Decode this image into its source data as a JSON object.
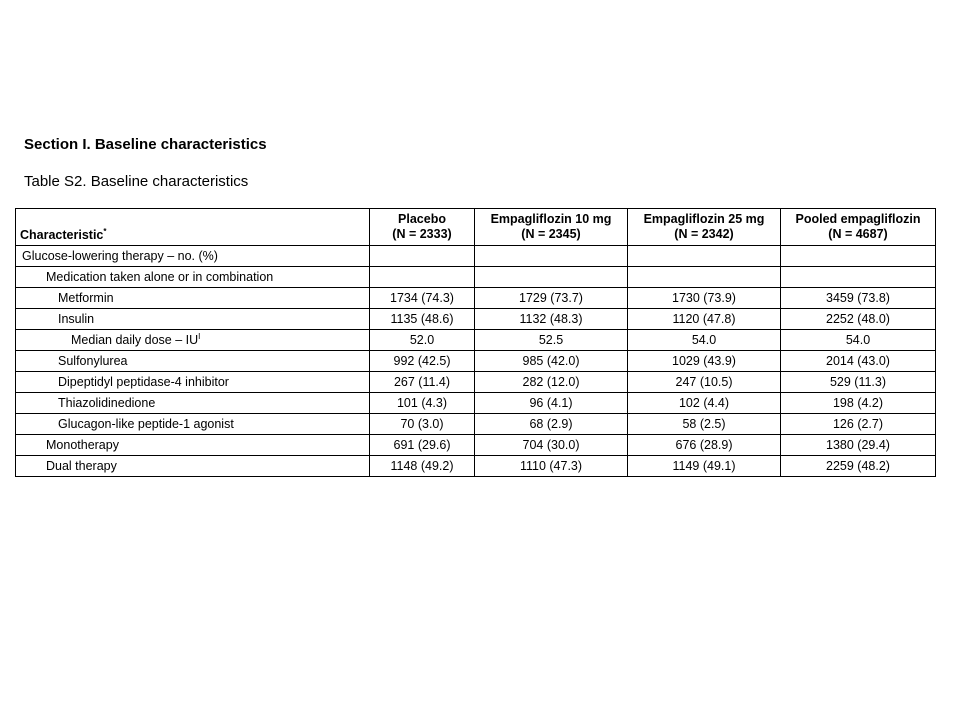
{
  "header": {
    "section": "Section I. Baseline characteristics",
    "caption": "Table S2. Baseline characteristics"
  },
  "table": {
    "first_header": {
      "label": "Characteristic",
      "sup": "*"
    },
    "columns": [
      {
        "label": "Placebo",
        "n": "(N = 2333)"
      },
      {
        "label": "Empagliflozin 10 mg",
        "n": "(N = 2345)"
      },
      {
        "label": "Empagliflozin 25 mg",
        "n": "(N = 2342)"
      },
      {
        "label": "Pooled empagliflozin",
        "n": "(N = 4687)"
      }
    ],
    "rows": [
      {
        "label": "Glucose-lowering therapy – no. (%)",
        "values": [
          null,
          null,
          null,
          null
        ]
      },
      {
        "label": "Medication taken alone or in combination",
        "values": [
          null,
          null,
          null,
          null
        ]
      },
      {
        "label": "Metformin",
        "values": [
          "1734 (74.3)",
          "1729 (73.7)",
          "1730 (73.9)",
          "3459 (73.8)"
        ]
      },
      {
        "label": "Insulin",
        "values": [
          "1135 (48.6)",
          "1132 (48.3)",
          "1120 (47.8)",
          "2252 (48.0)"
        ]
      },
      {
        "label": "Median daily dose – IU",
        "sup": "I",
        "values": [
          "52.0",
          "52.5",
          "54.0",
          "54.0"
        ]
      },
      {
        "label": "Sulfonylurea",
        "values": [
          "992 (42.5)",
          "985 (42.0)",
          "1029 (43.9)",
          "2014 (43.0)"
        ]
      },
      {
        "label": "Dipeptidyl peptidase-4 inhibitor",
        "values": [
          "267 (11.4)",
          "282 (12.0)",
          "247 (10.5)",
          "529 (11.3)"
        ]
      },
      {
        "label": "Thiazolidinedione",
        "values": [
          "101 (4.3)",
          "96 (4.1)",
          "102 (4.4)",
          "198 (4.2)"
        ]
      },
      {
        "label": "Glucagon-like peptide-1 agonist",
        "values": [
          "70 (3.0)",
          "68 (2.9)",
          "58 (2.5)",
          "126 (2.7)"
        ]
      },
      {
        "label": "Monotherapy",
        "values": [
          "691 (29.6)",
          "704 (30.0)",
          "676 (28.9)",
          "1380 (29.4)"
        ]
      },
      {
        "label": "Dual therapy",
        "values": [
          "1148 (49.2)",
          "1110 (47.3)",
          "1149 (49.1)",
          "2259 (48.2)"
        ]
      }
    ]
  }
}
